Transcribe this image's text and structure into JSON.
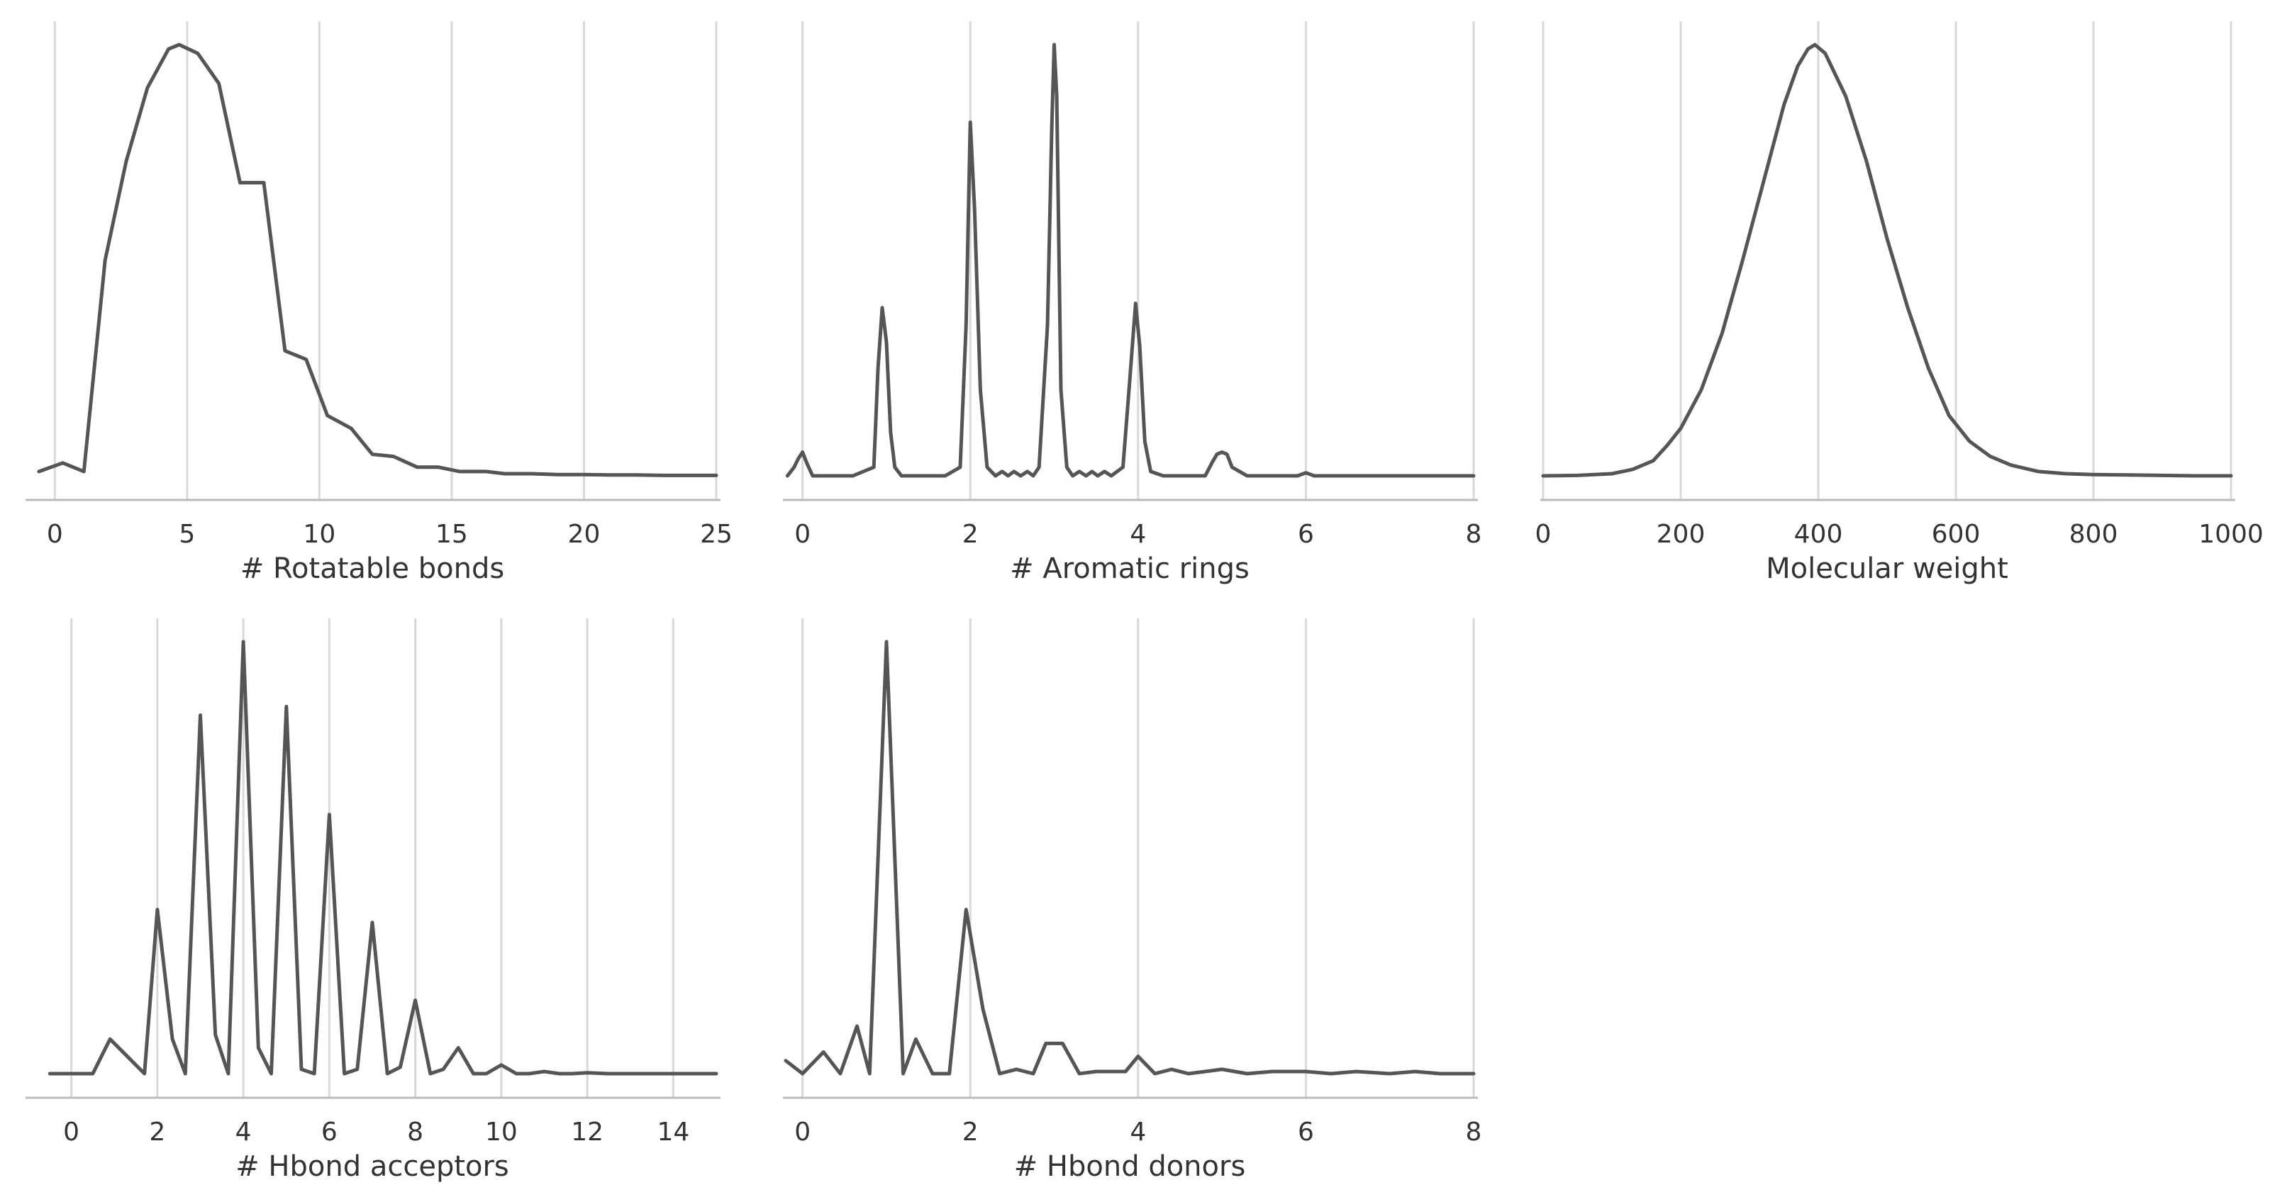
{
  "figure": {
    "line_color": "#555555",
    "grid_color": "#d9d9d9",
    "axis_color": "#bbbbbb"
  },
  "chart_data": [
    {
      "id": "rotatable",
      "type": "line",
      "xlabel": "# Rotatable bonds",
      "ylabel": "",
      "xlim": [
        -1,
        25
      ],
      "xticks": [
        0,
        5,
        10,
        15,
        20,
        25
      ],
      "grid": "vertical",
      "series": [
        {
          "x": [
            -0.6,
            0.3,
            1.1,
            1.9,
            2.7,
            3.5,
            4.3,
            4.7,
            5.4,
            6.2,
            7.0,
            7.9,
            8.7,
            9.5,
            10.3,
            11.2,
            12.0,
            12.8,
            13.7,
            14.5,
            15.3,
            16.3,
            17.0,
            18.0,
            19.0,
            20.0,
            21.0,
            22.0,
            23.0,
            24.0,
            25.0
          ],
          "y": [
            0.01,
            0.03,
            0.01,
            0.5,
            0.73,
            0.9,
            0.99,
            1.0,
            0.98,
            0.91,
            0.68,
            0.68,
            0.29,
            0.27,
            0.14,
            0.11,
            0.05,
            0.045,
            0.02,
            0.02,
            0.01,
            0.01,
            0.005,
            0.005,
            0.003,
            0.003,
            0.002,
            0.002,
            0.001,
            0.001,
            0.001
          ]
        }
      ]
    },
    {
      "id": "aromatic",
      "type": "line",
      "xlabel": "# Aromatic rings",
      "ylabel": "",
      "xlim": [
        -0.2,
        8
      ],
      "xticks": [
        0,
        2,
        4,
        6,
        8
      ],
      "grid": "vertical",
      "series": [
        {
          "x": [
            -0.18,
            -0.1,
            -0.05,
            0.0,
            0.05,
            0.12,
            0.3,
            0.6,
            0.85,
            0.9,
            0.95,
            1.0,
            1.05,
            1.1,
            1.18,
            1.4,
            1.7,
            1.88,
            1.95,
            2.0,
            2.05,
            2.12,
            2.2,
            2.3,
            2.38,
            2.45,
            2.52,
            2.6,
            2.68,
            2.75,
            2.82,
            2.92,
            2.97,
            3.0,
            3.03,
            3.08,
            3.15,
            3.22,
            3.3,
            3.38,
            3.45,
            3.52,
            3.6,
            3.68,
            3.75,
            3.82,
            3.9,
            3.97,
            4.02,
            4.08,
            4.15,
            4.3,
            4.6,
            4.8,
            4.88,
            4.94,
            5.0,
            5.06,
            5.12,
            5.3,
            5.6,
            5.9,
            6.0,
            6.1,
            6.5,
            7.0,
            7.5,
            8.0
          ],
          "y": [
            0.0,
            0.02,
            0.04,
            0.055,
            0.03,
            0.0,
            0.0,
            0.0,
            0.02,
            0.25,
            0.39,
            0.31,
            0.1,
            0.02,
            0.0,
            0.0,
            0.0,
            0.02,
            0.35,
            0.82,
            0.62,
            0.2,
            0.02,
            0.0,
            0.01,
            0.0,
            0.01,
            0.0,
            0.01,
            0.0,
            0.02,
            0.35,
            0.8,
            1.0,
            0.88,
            0.2,
            0.02,
            0.0,
            0.01,
            0.0,
            0.01,
            0.0,
            0.01,
            0.0,
            0.01,
            0.02,
            0.22,
            0.4,
            0.3,
            0.08,
            0.01,
            0.0,
            0.0,
            0.0,
            0.03,
            0.05,
            0.055,
            0.05,
            0.02,
            0.0,
            0.0,
            0.0,
            0.007,
            0.0,
            0.0,
            0.0,
            0.0,
            0.0
          ]
        }
      ]
    },
    {
      "id": "molweight",
      "type": "line",
      "xlabel": "Molecular weight",
      "ylabel": "",
      "xlim": [
        0,
        1000
      ],
      "xticks": [
        0,
        200,
        400,
        600,
        800,
        1000
      ],
      "grid": "vertical",
      "series": [
        {
          "x": [
            0,
            50,
            100,
            130,
            160,
            180,
            200,
            230,
            260,
            290,
            320,
            350,
            370,
            385,
            395,
            410,
            440,
            470,
            500,
            530,
            560,
            590,
            620,
            650,
            680,
            720,
            760,
            800,
            850,
            900,
            950,
            1000
          ],
          "y": [
            0.0,
            0.001,
            0.005,
            0.015,
            0.035,
            0.07,
            0.11,
            0.2,
            0.33,
            0.5,
            0.68,
            0.86,
            0.95,
            0.99,
            1.0,
            0.98,
            0.88,
            0.73,
            0.55,
            0.39,
            0.25,
            0.14,
            0.08,
            0.045,
            0.025,
            0.01,
            0.005,
            0.003,
            0.002,
            0.001,
            0.0,
            0.0
          ]
        }
      ]
    },
    {
      "id": "hbacc",
      "type": "line",
      "xlabel": "# Hbond acceptors",
      "ylabel": "",
      "xlim": [
        -1,
        15
      ],
      "xticks": [
        0,
        2,
        4,
        6,
        8,
        10,
        12,
        14
      ],
      "grid": "vertical",
      "series": [
        {
          "x": [
            -0.5,
            0.5,
            0.9,
            1.4,
            1.7,
            2.0,
            2.35,
            2.65,
            3.0,
            3.35,
            3.65,
            4.0,
            4.35,
            4.65,
            5.0,
            5.35,
            5.65,
            6.0,
            6.35,
            6.65,
            7.0,
            7.35,
            7.65,
            8.0,
            8.35,
            8.65,
            9.0,
            9.35,
            9.65,
            10.0,
            10.35,
            10.65,
            11.0,
            11.35,
            11.65,
            12.0,
            12.5,
            13.0,
            13.5,
            14.0,
            14.5,
            15.0
          ],
          "y": [
            0.0,
            0.0,
            0.08,
            0.03,
            0.0,
            0.38,
            0.08,
            0.0,
            0.83,
            0.09,
            0.0,
            1.0,
            0.06,
            0.0,
            0.85,
            0.01,
            0.0,
            0.6,
            0.0,
            0.01,
            0.35,
            0.0,
            0.015,
            0.17,
            0.0,
            0.01,
            0.06,
            0.0,
            0.0,
            0.02,
            0.0,
            0.0,
            0.005,
            0.0,
            0.0,
            0.002,
            0.0,
            0.0,
            0.0,
            0.0,
            0.0,
            0.0
          ]
        }
      ]
    },
    {
      "id": "hbdon",
      "type": "line",
      "xlabel": "# Hbond donors",
      "ylabel": "",
      "xlim": [
        -0.2,
        8
      ],
      "xticks": [
        0,
        2,
        4,
        6,
        8
      ],
      "grid": "vertical",
      "series": [
        {
          "x": [
            -0.2,
            0.0,
            0.25,
            0.45,
            0.65,
            0.8,
            1.0,
            1.2,
            1.35,
            1.55,
            1.75,
            1.95,
            2.15,
            2.35,
            2.55,
            2.75,
            2.9,
            3.1,
            3.3,
            3.5,
            3.7,
            3.85,
            4.0,
            4.2,
            4.4,
            4.6,
            4.8,
            5.0,
            5.3,
            5.6,
            6.0,
            6.3,
            6.6,
            7.0,
            7.3,
            7.6,
            8.0
          ],
          "y": [
            0.03,
            0.0,
            0.05,
            0.0,
            0.11,
            0.0,
            1.0,
            0.0,
            0.08,
            0.0,
            0.0,
            0.38,
            0.15,
            0.0,
            0.01,
            0.0,
            0.07,
            0.07,
            0.0,
            0.005,
            0.005,
            0.005,
            0.04,
            0.0,
            0.01,
            0.0,
            0.005,
            0.01,
            0.0,
            0.005,
            0.005,
            0.0,
            0.005,
            0.0,
            0.005,
            0.0,
            0.0
          ]
        }
      ]
    }
  ]
}
